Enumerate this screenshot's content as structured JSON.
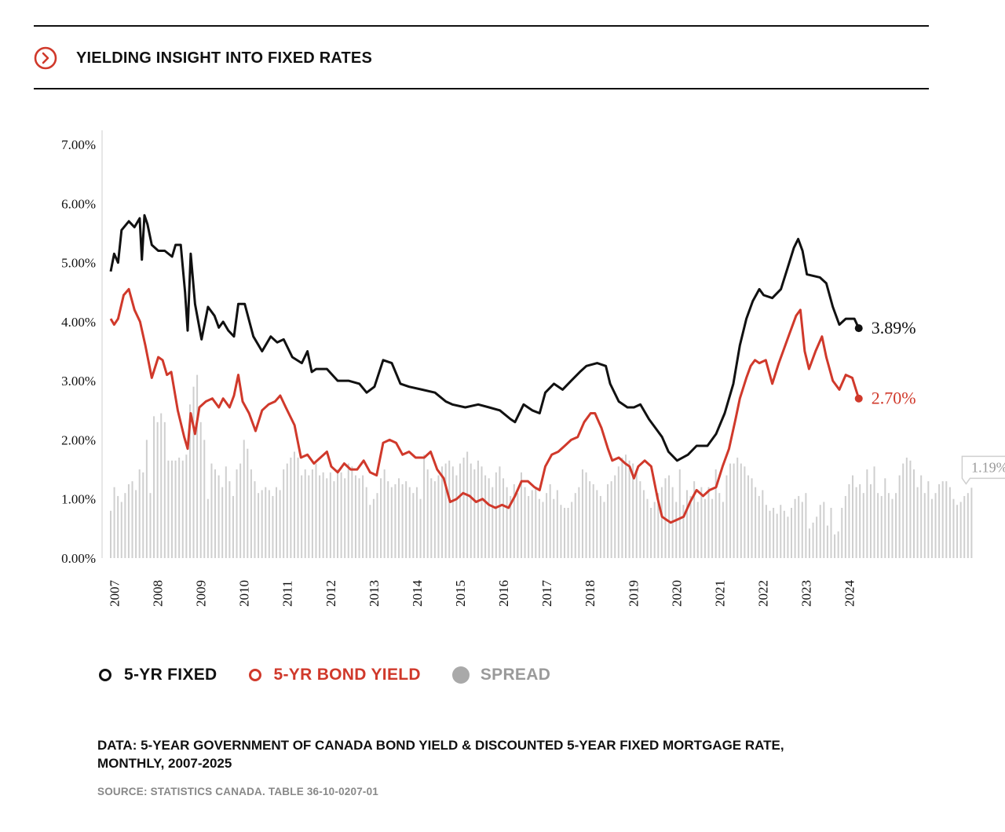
{
  "header": {
    "title": "YIELDING INSIGHT INTO FIXED RATES",
    "icon": "chevron-right-circle-icon"
  },
  "colors": {
    "fixed": "#111111",
    "bond": "#d0392b",
    "spread": "#cfcfcf",
    "accent": "#d0392b"
  },
  "legend": {
    "fixed_label": "5-YR FIXED",
    "bond_label": "5-YR BOND YIELD",
    "spread_label": "SPREAD"
  },
  "caption": "DATA: 5-YEAR GOVERNMENT OF CANADA BOND YIELD & DISCOUNTED 5-YEAR FIXED MORTGAGE RATE, MONTHLY, 2007-2025",
  "source": "SOURCE: STATISTICS CANADA. TABLE 36-10-0207-01",
  "chart_data": {
    "type": "line",
    "title": "YIELDING INSIGHT INTO FIXED RATES",
    "xlabel": "",
    "ylabel": "",
    "ylim": [
      0,
      7
    ],
    "xlim": [
      2007.0,
      2024.45
    ],
    "yticks": [
      "0.00%",
      "1.00%",
      "2.00%",
      "3.00%",
      "4.00%",
      "5.00%",
      "6.00%",
      "7.00%"
    ],
    "xticks": [
      "2007",
      "2008",
      "2009",
      "2010",
      "2011",
      "2012",
      "2013",
      "2014",
      "2015",
      "2016",
      "2017",
      "2018",
      "2019",
      "2020",
      "2021",
      "2022",
      "2023",
      "2024"
    ],
    "series": [
      {
        "name": "5-YR FIXED",
        "points": [
          [
            2007.0,
            4.85
          ],
          [
            2007.08,
            5.15
          ],
          [
            2007.17,
            5.0
          ],
          [
            2007.25,
            5.55
          ],
          [
            2007.42,
            5.7
          ],
          [
            2007.55,
            5.6
          ],
          [
            2007.67,
            5.75
          ],
          [
            2007.72,
            5.05
          ],
          [
            2007.78,
            5.8
          ],
          [
            2007.85,
            5.65
          ],
          [
            2007.95,
            5.3
          ],
          [
            2008.1,
            5.2
          ],
          [
            2008.25,
            5.2
          ],
          [
            2008.42,
            5.1
          ],
          [
            2008.5,
            5.3
          ],
          [
            2008.62,
            5.3
          ],
          [
            2008.72,
            4.5
          ],
          [
            2008.78,
            3.85
          ],
          [
            2008.85,
            5.15
          ],
          [
            2008.95,
            4.3
          ],
          [
            2009.1,
            3.7
          ],
          [
            2009.25,
            4.25
          ],
          [
            2009.4,
            4.1
          ],
          [
            2009.5,
            3.9
          ],
          [
            2009.6,
            4.0
          ],
          [
            2009.72,
            3.85
          ],
          [
            2009.85,
            3.75
          ],
          [
            2009.95,
            4.3
          ],
          [
            2010.1,
            4.3
          ],
          [
            2010.3,
            3.75
          ],
          [
            2010.5,
            3.5
          ],
          [
            2010.7,
            3.75
          ],
          [
            2010.85,
            3.65
          ],
          [
            2011.0,
            3.7
          ],
          [
            2011.2,
            3.4
          ],
          [
            2011.42,
            3.3
          ],
          [
            2011.55,
            3.5
          ],
          [
            2011.65,
            3.15
          ],
          [
            2011.75,
            3.2
          ],
          [
            2011.85,
            3.2
          ],
          [
            2012.0,
            3.2
          ],
          [
            2012.25,
            3.0
          ],
          [
            2012.5,
            3.0
          ],
          [
            2012.75,
            2.95
          ],
          [
            2012.92,
            2.8
          ],
          [
            2013.1,
            2.9
          ],
          [
            2013.3,
            3.35
          ],
          [
            2013.5,
            3.3
          ],
          [
            2013.7,
            2.95
          ],
          [
            2013.9,
            2.9
          ],
          [
            2014.2,
            2.85
          ],
          [
            2014.5,
            2.8
          ],
          [
            2014.75,
            2.65
          ],
          [
            2014.9,
            2.6
          ],
          [
            2015.2,
            2.55
          ],
          [
            2015.5,
            2.6
          ],
          [
            2015.75,
            2.55
          ],
          [
            2016.0,
            2.5
          ],
          [
            2016.25,
            2.35
          ],
          [
            2016.35,
            2.3
          ],
          [
            2016.55,
            2.6
          ],
          [
            2016.75,
            2.5
          ],
          [
            2016.92,
            2.45
          ],
          [
            2017.05,
            2.8
          ],
          [
            2017.25,
            2.95
          ],
          [
            2017.45,
            2.85
          ],
          [
            2017.65,
            3.0
          ],
          [
            2017.85,
            3.15
          ],
          [
            2018.0,
            3.25
          ],
          [
            2018.25,
            3.3
          ],
          [
            2018.45,
            3.25
          ],
          [
            2018.55,
            2.95
          ],
          [
            2018.75,
            2.65
          ],
          [
            2018.95,
            2.55
          ],
          [
            2019.1,
            2.55
          ],
          [
            2019.25,
            2.6
          ],
          [
            2019.45,
            2.35
          ],
          [
            2019.6,
            2.2
          ],
          [
            2019.75,
            2.05
          ],
          [
            2019.9,
            1.8
          ],
          [
            2020.1,
            1.65
          ],
          [
            2020.35,
            1.75
          ],
          [
            2020.55,
            1.9
          ],
          [
            2020.8,
            1.9
          ],
          [
            2021.0,
            2.1
          ],
          [
            2021.2,
            2.45
          ],
          [
            2021.4,
            2.95
          ],
          [
            2021.55,
            3.6
          ],
          [
            2021.7,
            4.05
          ],
          [
            2021.85,
            4.35
          ],
          [
            2022.0,
            4.55
          ],
          [
            2022.1,
            4.45
          ],
          [
            2022.3,
            4.4
          ],
          [
            2022.5,
            4.55
          ],
          [
            2022.65,
            4.9
          ],
          [
            2022.8,
            5.25
          ],
          [
            2022.9,
            5.4
          ],
          [
            2023.0,
            5.2
          ],
          [
            2023.1,
            4.8
          ],
          [
            2023.4,
            4.75
          ],
          [
            2023.55,
            4.65
          ],
          [
            2023.7,
            4.25
          ],
          [
            2023.85,
            3.95
          ],
          [
            2024.0,
            4.05
          ],
          [
            2024.2,
            4.05
          ],
          [
            2024.3,
            3.89
          ]
        ]
      },
      {
        "name": "5-YR BOND YIELD",
        "points": [
          [
            2007.0,
            4.05
          ],
          [
            2007.08,
            3.95
          ],
          [
            2007.17,
            4.05
          ],
          [
            2007.3,
            4.45
          ],
          [
            2007.42,
            4.55
          ],
          [
            2007.55,
            4.2
          ],
          [
            2007.68,
            4.0
          ],
          [
            2007.8,
            3.6
          ],
          [
            2007.95,
            3.05
          ],
          [
            2008.1,
            3.4
          ],
          [
            2008.2,
            3.35
          ],
          [
            2008.3,
            3.1
          ],
          [
            2008.4,
            3.15
          ],
          [
            2008.55,
            2.5
          ],
          [
            2008.7,
            2.05
          ],
          [
            2008.78,
            1.85
          ],
          [
            2008.85,
            2.45
          ],
          [
            2008.95,
            2.1
          ],
          [
            2009.05,
            2.55
          ],
          [
            2009.2,
            2.65
          ],
          [
            2009.35,
            2.7
          ],
          [
            2009.5,
            2.55
          ],
          [
            2009.6,
            2.7
          ],
          [
            2009.75,
            2.55
          ],
          [
            2009.85,
            2.75
          ],
          [
            2009.95,
            3.1
          ],
          [
            2010.05,
            2.65
          ],
          [
            2010.2,
            2.45
          ],
          [
            2010.35,
            2.15
          ],
          [
            2010.5,
            2.5
          ],
          [
            2010.65,
            2.6
          ],
          [
            2010.8,
            2.65
          ],
          [
            2010.92,
            2.75
          ],
          [
            2011.05,
            2.55
          ],
          [
            2011.25,
            2.25
          ],
          [
            2011.4,
            1.7
          ],
          [
            2011.55,
            1.75
          ],
          [
            2011.7,
            1.6
          ],
          [
            2011.85,
            1.7
          ],
          [
            2012.0,
            1.8
          ],
          [
            2012.1,
            1.55
          ],
          [
            2012.25,
            1.45
          ],
          [
            2012.4,
            1.6
          ],
          [
            2012.55,
            1.5
          ],
          [
            2012.7,
            1.5
          ],
          [
            2012.85,
            1.65
          ],
          [
            2013.0,
            1.45
          ],
          [
            2013.15,
            1.4
          ],
          [
            2013.3,
            1.95
          ],
          [
            2013.45,
            2.0
          ],
          [
            2013.6,
            1.95
          ],
          [
            2013.75,
            1.75
          ],
          [
            2013.9,
            1.8
          ],
          [
            2014.05,
            1.7
          ],
          [
            2014.25,
            1.7
          ],
          [
            2014.4,
            1.8
          ],
          [
            2014.55,
            1.5
          ],
          [
            2014.7,
            1.35
          ],
          [
            2014.85,
            0.95
          ],
          [
            2015.0,
            1.0
          ],
          [
            2015.15,
            1.1
          ],
          [
            2015.3,
            1.05
          ],
          [
            2015.45,
            0.95
          ],
          [
            2015.6,
            1.0
          ],
          [
            2015.75,
            0.9
          ],
          [
            2015.9,
            0.85
          ],
          [
            2016.05,
            0.9
          ],
          [
            2016.2,
            0.85
          ],
          [
            2016.35,
            1.05
          ],
          [
            2016.5,
            1.3
          ],
          [
            2016.65,
            1.3
          ],
          [
            2016.8,
            1.2
          ],
          [
            2016.92,
            1.15
          ],
          [
            2017.05,
            1.55
          ],
          [
            2017.2,
            1.75
          ],
          [
            2017.35,
            1.8
          ],
          [
            2017.5,
            1.9
          ],
          [
            2017.65,
            2.0
          ],
          [
            2017.8,
            2.05
          ],
          [
            2017.95,
            2.3
          ],
          [
            2018.1,
            2.45
          ],
          [
            2018.2,
            2.45
          ],
          [
            2018.35,
            2.2
          ],
          [
            2018.5,
            1.85
          ],
          [
            2018.6,
            1.65
          ],
          [
            2018.75,
            1.7
          ],
          [
            2018.9,
            1.6
          ],
          [
            2019.0,
            1.55
          ],
          [
            2019.1,
            1.35
          ],
          [
            2019.2,
            1.55
          ],
          [
            2019.35,
            1.65
          ],
          [
            2019.5,
            1.55
          ],
          [
            2019.65,
            1.0
          ],
          [
            2019.75,
            0.7
          ],
          [
            2019.85,
            0.65
          ],
          [
            2019.95,
            0.6
          ],
          [
            2020.1,
            0.65
          ],
          [
            2020.25,
            0.7
          ],
          [
            2020.4,
            0.95
          ],
          [
            2020.55,
            1.15
          ],
          [
            2020.7,
            1.05
          ],
          [
            2020.85,
            1.15
          ],
          [
            2021.0,
            1.2
          ],
          [
            2021.15,
            1.55
          ],
          [
            2021.3,
            1.85
          ],
          [
            2021.45,
            2.35
          ],
          [
            2021.55,
            2.7
          ],
          [
            2021.7,
            3.05
          ],
          [
            2021.8,
            3.25
          ],
          [
            2021.9,
            3.35
          ],
          [
            2022.0,
            3.3
          ],
          [
            2022.15,
            3.35
          ],
          [
            2022.3,
            2.95
          ],
          [
            2022.45,
            3.3
          ],
          [
            2022.55,
            3.5
          ],
          [
            2022.7,
            3.8
          ],
          [
            2022.85,
            4.1
          ],
          [
            2022.95,
            4.2
          ],
          [
            2023.05,
            3.5
          ],
          [
            2023.15,
            3.2
          ],
          [
            2023.3,
            3.5
          ],
          [
            2023.45,
            3.75
          ],
          [
            2023.55,
            3.4
          ],
          [
            2023.7,
            3.0
          ],
          [
            2023.85,
            2.85
          ],
          [
            2024.0,
            3.1
          ],
          [
            2024.15,
            3.05
          ],
          [
            2024.3,
            2.7
          ]
        ]
      }
    ],
    "spread": {
      "name": "SPREAD",
      "start": 2007.0,
      "step": 0.0833,
      "values": [
        0.8,
        1.2,
        1.05,
        0.95,
        1.1,
        1.25,
        1.3,
        1.15,
        1.5,
        1.45,
        2.0,
        1.1,
        2.4,
        2.3,
        2.45,
        2.3,
        1.65,
        1.65,
        1.65,
        1.7,
        1.65,
        1.75,
        2.6,
        2.9,
        3.1,
        2.3,
        2.0,
        1.0,
        1.6,
        1.5,
        1.4,
        1.2,
        1.55,
        1.3,
        1.05,
        1.5,
        1.6,
        2.0,
        1.85,
        1.5,
        1.3,
        1.1,
        1.15,
        1.2,
        1.15,
        1.05,
        1.2,
        1.15,
        1.5,
        1.6,
        1.7,
        1.8,
        1.7,
        1.4,
        1.5,
        1.4,
        1.5,
        1.6,
        1.4,
        1.45,
        1.35,
        1.45,
        1.3,
        1.5,
        1.45,
        1.35,
        1.6,
        1.55,
        1.4,
        1.35,
        1.4,
        1.2,
        0.9,
        1.0,
        1.1,
        1.35,
        1.5,
        1.3,
        1.2,
        1.25,
        1.35,
        1.25,
        1.3,
        1.2,
        1.1,
        1.2,
        1.0,
        1.75,
        1.5,
        1.35,
        1.3,
        1.4,
        1.55,
        1.6,
        1.65,
        1.55,
        1.4,
        1.6,
        1.7,
        1.8,
        1.6,
        1.5,
        1.65,
        1.55,
        1.4,
        1.35,
        1.2,
        1.45,
        1.55,
        1.35,
        1.2,
        1.05,
        1.25,
        1.1,
        1.45,
        1.2,
        1.05,
        1.15,
        1.2,
        1.0,
        0.95,
        1.1,
        1.25,
        1.0,
        1.15,
        0.9,
        0.85,
        0.85,
        0.95,
        1.1,
        1.2,
        1.5,
        1.45,
        1.3,
        1.25,
        1.15,
        1.05,
        0.95,
        1.25,
        1.3,
        1.4,
        1.55,
        1.7,
        1.75,
        1.65,
        1.6,
        1.45,
        1.3,
        1.15,
        1.0,
        0.85,
        0.95,
        1.1,
        1.2,
        1.35,
        1.4,
        1.2,
        0.95,
        1.5,
        0.9,
        1.15,
        1.05,
        1.3,
        0.95,
        1.2,
        1.0,
        1.2,
        1.0,
        1.5,
        1.1,
        0.95,
        1.4,
        1.6,
        1.6,
        1.7,
        1.6,
        1.55,
        1.4,
        1.35,
        1.2,
        1.05,
        1.15,
        0.9,
        0.8,
        0.85,
        0.75,
        0.9,
        0.8,
        0.7,
        0.85,
        1.0,
        1.05,
        0.95,
        1.1,
        0.5,
        0.6,
        0.7,
        0.9,
        0.95,
        0.55,
        0.85,
        0.4,
        0.45,
        0.85,
        1.05,
        1.25,
        1.4,
        1.2,
        1.25,
        1.1,
        1.5,
        1.25,
        1.55,
        1.1,
        1.05,
        1.35,
        1.1,
        1.0,
        1.1,
        1.4,
        1.6,
        1.7,
        1.65,
        1.5,
        1.2,
        1.4,
        1.1,
        1.3,
        1.0,
        1.1,
        1.25,
        1.3,
        1.3,
        1.2,
        1.0,
        0.9,
        0.95,
        1.05,
        1.1,
        1.19
      ]
    },
    "annotations": {
      "fixed_last": "3.89%",
      "bond_last": "2.70%",
      "spread_last": "1.19%"
    }
  }
}
